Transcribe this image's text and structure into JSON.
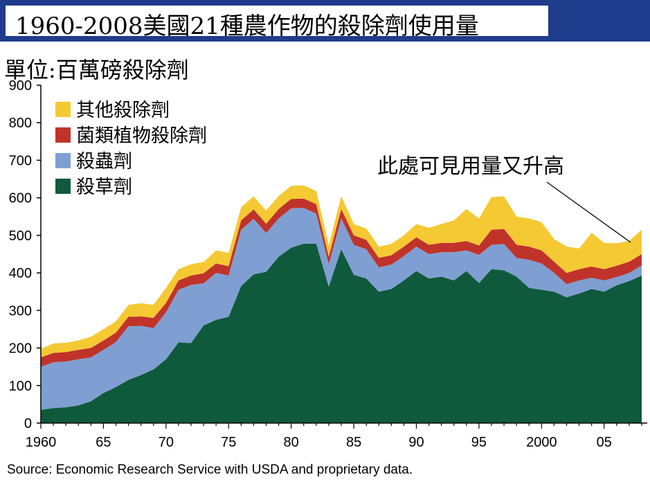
{
  "title": "1960-2008美國21種農作物的殺除劑使用量",
  "unit_label": "單位:百萬磅殺除劑",
  "source": "Source: Economic Research Service with USDA and proprietary data.",
  "annotation": "此處可見用量又升高",
  "colors": {
    "header_bar": "#1f3c8c",
    "herbicide": "#0f5a3c",
    "insecticide": "#7f9fd2",
    "fungicide": "#c0332b",
    "other": "#f5c933"
  },
  "chart_data": {
    "type": "area",
    "stacked": true,
    "x": [
      1960,
      1961,
      1962,
      1963,
      1964,
      1965,
      1966,
      1967,
      1968,
      1969,
      1970,
      1971,
      1972,
      1973,
      1974,
      1975,
      1976,
      1977,
      1978,
      1979,
      1980,
      1981,
      1982,
      1983,
      1984,
      1985,
      1986,
      1987,
      1988,
      1989,
      1990,
      1991,
      1992,
      1993,
      1994,
      1995,
      1996,
      1997,
      1998,
      1999,
      2000,
      2001,
      2002,
      2003,
      2004,
      2005,
      2006,
      2007,
      2008
    ],
    "x_tick_values": [
      1960,
      1965,
      1970,
      1975,
      1980,
      1985,
      1990,
      1995,
      2000,
      2005
    ],
    "x_tick_labels": [
      "1960",
      "65",
      "70",
      "75",
      "80",
      "85",
      "90",
      "95",
      "2000",
      "05"
    ],
    "ylim": [
      0,
      900
    ],
    "y_ticks": [
      0,
      100,
      200,
      300,
      400,
      500,
      600,
      700,
      800,
      900
    ],
    "series": [
      {
        "name": "殺草劑",
        "color_key": "herbicide",
        "values": [
          35,
          40,
          42,
          47,
          58,
          80,
          96,
          115,
          128,
          143,
          170,
          215,
          213,
          260,
          275,
          283,
          365,
          396,
          403,
          443,
          467,
          478,
          478,
          363,
          463,
          395,
          385,
          350,
          357,
          380,
          405,
          385,
          390,
          380,
          405,
          373,
          410,
          407,
          390,
          360,
          355,
          350,
          335,
          345,
          357,
          350,
          367,
          378,
          393
        ]
      },
      {
        "name": "殺蟲劑",
        "color_key": "insecticide",
        "values": [
          115,
          122,
          122,
          123,
          117,
          115,
          120,
          143,
          131,
          110,
          125,
          140,
          155,
          112,
          125,
          110,
          150,
          148,
          103,
          102,
          105,
          95,
          80,
          60,
          82,
          80,
          78,
          65,
          65,
          65,
          65,
          65,
          65,
          75,
          55,
          75,
          65,
          70,
          50,
          75,
          70,
          50,
          35,
          35,
          30,
          30,
          22,
          22,
          27
        ]
      },
      {
        "name": "菌類植物殺除劑",
        "color_key": "fungicide",
        "values": [
          25,
          25,
          25,
          25,
          25,
          25,
          25,
          25,
          25,
          27,
          25,
          25,
          25,
          27,
          25,
          25,
          25,
          25,
          25,
          25,
          25,
          25,
          25,
          20,
          25,
          25,
          25,
          25,
          25,
          25,
          25,
          25,
          25,
          25,
          25,
          25,
          40,
          40,
          35,
          35,
          35,
          30,
          30,
          30,
          30,
          30,
          30,
          30,
          30
        ]
      },
      {
        "name": "其他殺除劑",
        "color_key": "other",
        "values": [
          22,
          25,
          25,
          25,
          30,
          30,
          30,
          32,
          35,
          35,
          40,
          30,
          30,
          30,
          35,
          35,
          35,
          35,
          35,
          35,
          35,
          35,
          35,
          30,
          35,
          30,
          30,
          30,
          30,
          30,
          35,
          45,
          50,
          60,
          85,
          72,
          87,
          87,
          75,
          75,
          75,
          60,
          70,
          55,
          90,
          70,
          60,
          55,
          65
        ]
      }
    ]
  }
}
